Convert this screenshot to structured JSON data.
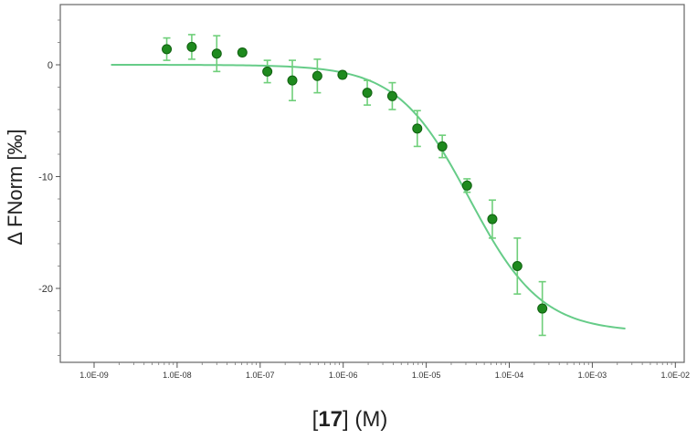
{
  "chart_data": {
    "type": "scatter",
    "xscale": "log",
    "xlabel_prefix": "[",
    "xlabel_bold": "17",
    "xlabel_suffix": "] (M)",
    "ylabel": "Δ FNorm [‰]",
    "xlim": [
      1e-09,
      0.01
    ],
    "ylim": [
      -26.5,
      5.5
    ],
    "x_tick_labels": [
      "1.0E-09",
      "1.0E-08",
      "1.0E-07",
      "1.0E-06",
      "1.0E-05",
      "1.0E-04",
      "1.0E-03",
      "1.0E-02"
    ],
    "y_tick_labels": [
      "0",
      "-10",
      "-20"
    ],
    "y_ticks": [
      0,
      -10,
      -20
    ],
    "points": [
      {
        "x": 7.5e-09,
        "y": 1.4,
        "err": 1.0
      },
      {
        "x": 1.5e-08,
        "y": 1.6,
        "err": 1.1
      },
      {
        "x": 3e-08,
        "y": 1.0,
        "err": 1.6
      },
      {
        "x": 6.1e-08,
        "y": 1.1,
        "err": 0.3
      },
      {
        "x": 1.22e-07,
        "y": -0.6,
        "err": 1.0
      },
      {
        "x": 2.44e-07,
        "y": -1.4,
        "err": 1.8
      },
      {
        "x": 4.88e-07,
        "y": -1.0,
        "err": 1.5
      },
      {
        "x": 9.8e-07,
        "y": -0.9,
        "err": 0.3
      },
      {
        "x": 1.95e-06,
        "y": -2.5,
        "err": 1.1
      },
      {
        "x": 3.9e-06,
        "y": -2.8,
        "err": 1.2
      },
      {
        "x": 7.8e-06,
        "y": -5.7,
        "err": 1.6
      },
      {
        "x": 1.56e-05,
        "y": -7.3,
        "err": 1.0
      },
      {
        "x": 3.1e-05,
        "y": -10.8,
        "err": 0.6
      },
      {
        "x": 6.25e-05,
        "y": -13.8,
        "err": 1.7
      },
      {
        "x": 0.000125,
        "y": -18.0,
        "err": 2.5
      },
      {
        "x": 0.00025,
        "y": -21.8,
        "err": 2.4
      }
    ],
    "fit_curve": {
      "x_range": [
        1.6e-09,
        0.0025
      ],
      "top": 0.0,
      "bottom": -23.9,
      "ec50": 3.3e-05,
      "hill": 1.0
    },
    "colors": {
      "marker": "#1e8a1e",
      "marker_edge": "#106010",
      "error_bar": "#6fcf7a",
      "fit_line": "#66cc88"
    },
    "grid": false,
    "legend": "none"
  }
}
